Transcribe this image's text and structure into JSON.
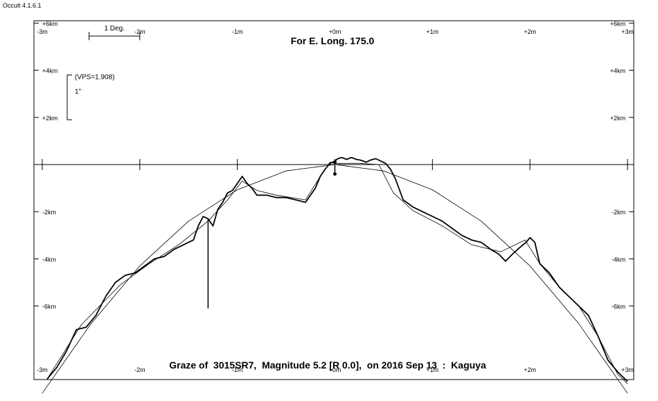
{
  "app": {
    "title": "Occult 4.1.6.1"
  },
  "chart_data": {
    "type": "line",
    "title": "For E. Long. 175.0",
    "subtitle": "Graze of  3015SR7,  Magnitude 5.2 [R 0.0],  on 2016 Sep 13  :  Kaguya",
    "x_unit": "minutes of position angle",
    "y_unit": "km",
    "xlim": [
      -3.0,
      3.0
    ],
    "ylim": [
      -9.0,
      6.0
    ],
    "x_ticks": [
      {
        "value": -3,
        "label": "-3m"
      },
      {
        "value": -2,
        "label": "-2m"
      },
      {
        "value": -1,
        "label": "-1m"
      },
      {
        "value": 0,
        "label": "+0m"
      },
      {
        "value": 1,
        "label": "+1m"
      },
      {
        "value": 2,
        "label": "+2m"
      },
      {
        "value": 3,
        "label": "+3m"
      }
    ],
    "y_ticks": [
      {
        "value": 6,
        "label": "+6km"
      },
      {
        "value": 4,
        "label": "+4km"
      },
      {
        "value": 2,
        "label": "+2km"
      },
      {
        "value": -2,
        "label": "-2km"
      },
      {
        "value": -4,
        "label": "-4km"
      },
      {
        "value": -6,
        "label": "-6km"
      }
    ],
    "scale_bar": {
      "label": "1 Deg.",
      "x_from": -2.52,
      "x_to": -2.0,
      "y": 5.45
    },
    "vertical_scale": {
      "label": "(VPS=1.908)",
      "unit_label": "1\"",
      "y_from": 3.8,
      "y_to": 1.9
    },
    "star_path_y": 0,
    "mean_limb": {
      "name": "mean limb",
      "x": [
        -3.0,
        -2.5,
        -2.0,
        -1.5,
        -1.0,
        -0.5,
        0.0,
        0.5,
        1.0,
        1.5,
        2.0,
        2.5,
        3.0
      ],
      "y": [
        -9.7,
        -6.75,
        -4.3,
        -2.4,
        -1.07,
        -0.27,
        0.0,
        -0.27,
        -1.07,
        -2.4,
        -4.3,
        -6.75,
        -9.7
      ]
    },
    "smoothed_profile": {
      "name": "smoothed limb",
      "x": [
        -2.95,
        -2.6,
        -2.2,
        -1.9,
        -1.6,
        -1.3,
        -1.1,
        -0.95,
        -0.8,
        -0.6,
        -0.45,
        -0.3,
        -0.15,
        -0.05,
        0.0,
        0.1,
        0.25,
        0.45,
        0.6,
        0.8,
        1.1,
        1.4,
        1.7,
        1.95,
        2.1,
        2.3,
        2.5,
        2.7,
        2.9,
        3.0
      ],
      "y": [
        -9.1,
        -6.8,
        -5.1,
        -4.2,
        -3.4,
        -2.4,
        -1.5,
        -0.7,
        -1.1,
        -1.3,
        -1.4,
        -1.5,
        -0.5,
        0.1,
        0.05,
        0.05,
        0.05,
        0.0,
        -1.2,
        -1.95,
        -2.6,
        -3.4,
        -3.7,
        -3.2,
        -4.2,
        -5.2,
        -6.0,
        -7.3,
        -8.9,
        -9.3
      ]
    },
    "observed_profile": {
      "name": "limb profile",
      "x": [
        -2.95,
        -2.85,
        -2.75,
        -2.65,
        -2.55,
        -2.45,
        -2.35,
        -2.25,
        -2.15,
        -2.05,
        -1.95,
        -1.85,
        -1.75,
        -1.65,
        -1.55,
        -1.45,
        -1.4,
        -1.35,
        -1.3,
        -1.25,
        -1.2,
        -1.15,
        -1.1,
        -1.05,
        -1.0,
        -0.95,
        -0.9,
        -0.85,
        -0.8,
        -0.7,
        -0.6,
        -0.5,
        -0.4,
        -0.3,
        -0.25,
        -0.2,
        -0.15,
        -0.1,
        -0.05,
        0.0,
        0.03,
        0.07,
        0.12,
        0.17,
        0.22,
        0.27,
        0.32,
        0.37,
        0.42,
        0.47,
        0.52,
        0.57,
        0.62,
        0.7,
        0.8,
        0.9,
        1.0,
        1.1,
        1.2,
        1.3,
        1.4,
        1.5,
        1.6,
        1.68,
        1.75,
        1.82,
        1.9,
        1.96,
        2.0,
        2.05,
        2.1,
        2.2,
        2.3,
        2.4,
        2.5,
        2.6,
        2.7,
        2.8,
        2.9,
        3.0
      ],
      "y": [
        -9.1,
        -8.6,
        -7.9,
        -7.0,
        -6.9,
        -6.4,
        -5.6,
        -5.0,
        -4.7,
        -4.6,
        -4.3,
        -4.0,
        -3.9,
        -3.6,
        -3.4,
        -3.2,
        -2.6,
        -2.2,
        -2.3,
        -2.6,
        -1.9,
        -1.6,
        -1.2,
        -1.1,
        -0.8,
        -0.5,
        -0.8,
        -1.0,
        -1.3,
        -1.3,
        -1.4,
        -1.4,
        -1.5,
        -1.6,
        -1.3,
        -1.0,
        -0.5,
        -0.2,
        0.05,
        0.15,
        0.25,
        0.3,
        0.22,
        0.3,
        0.22,
        0.18,
        0.1,
        0.2,
        0.25,
        0.15,
        0.05,
        -0.2,
        -0.6,
        -1.5,
        -1.8,
        -2.0,
        -2.2,
        -2.4,
        -2.7,
        -3.0,
        -3.2,
        -3.3,
        -3.6,
        -3.8,
        -4.1,
        -3.8,
        -3.5,
        -3.3,
        -3.1,
        -3.3,
        -4.2,
        -4.6,
        -5.2,
        -5.6,
        -6.0,
        -6.4,
        -7.3,
        -8.3,
        -8.8,
        -9.2
      ]
    },
    "event_markers": [
      {
        "name": "reappearance line",
        "x": -1.3,
        "y_from": -2.3,
        "y_to": -6.1
      },
      {
        "name": "graze point",
        "x": 0.0,
        "y_from": 0.1,
        "y_to": -0.4
      }
    ]
  }
}
